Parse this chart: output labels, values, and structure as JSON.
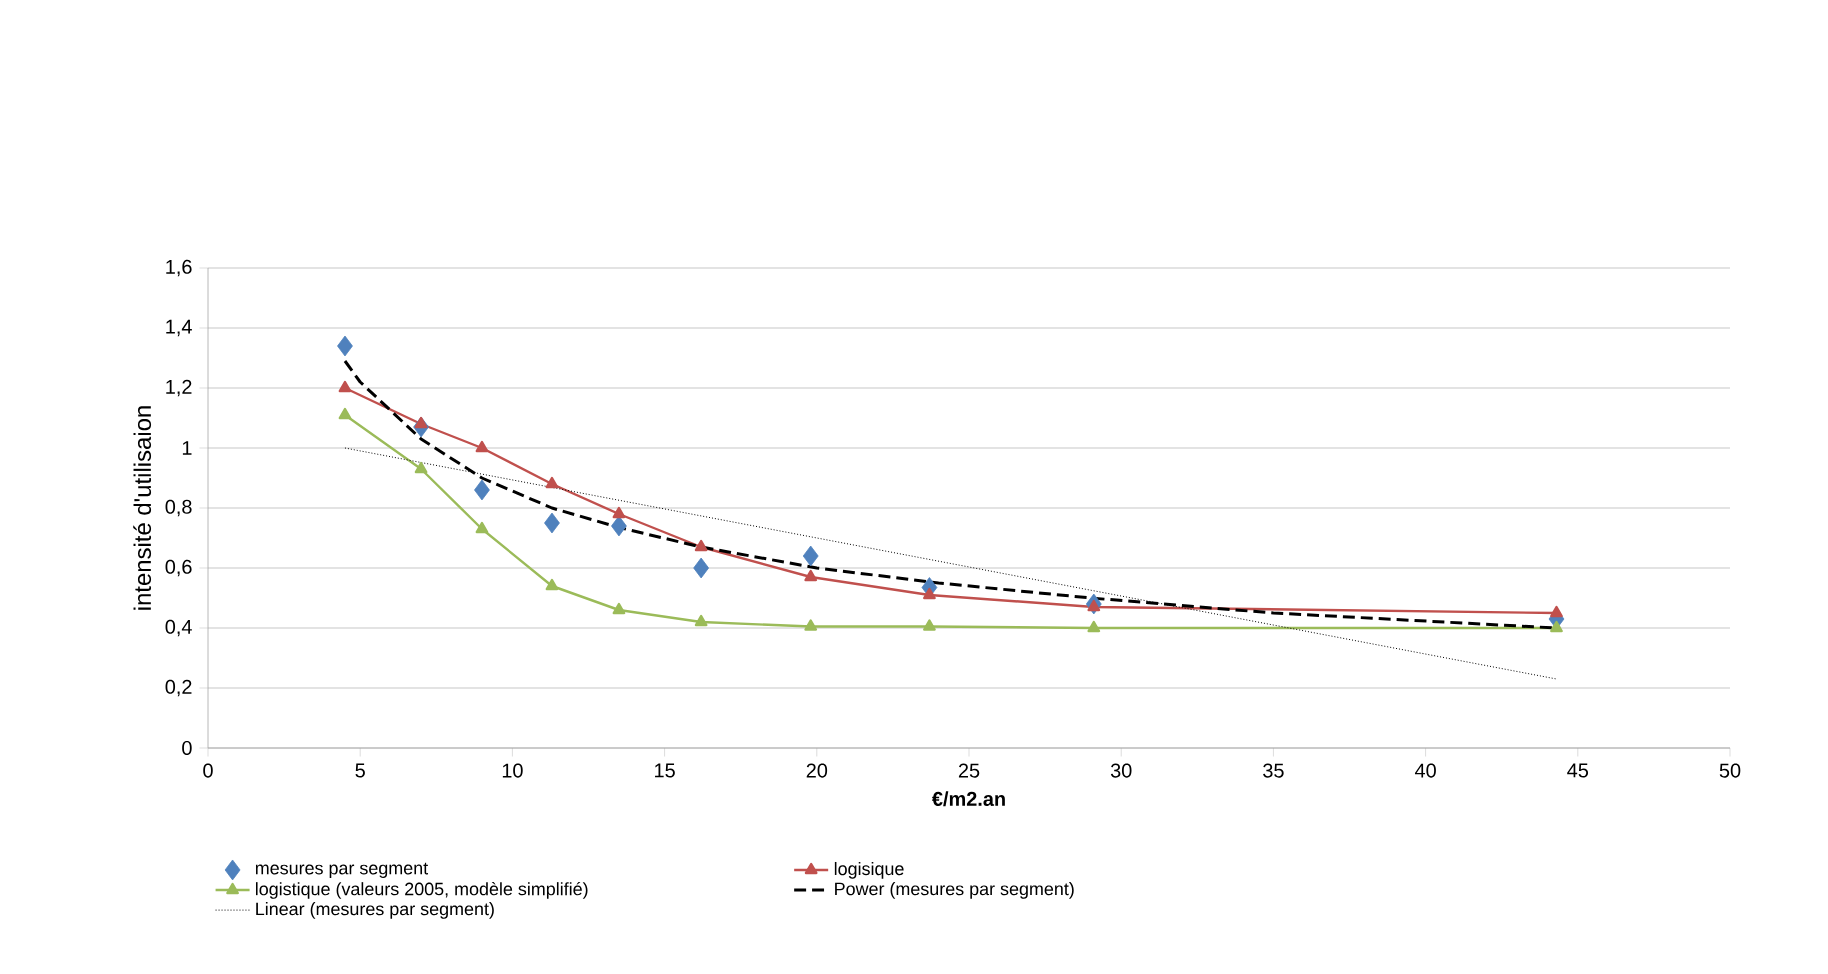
{
  "chart_data": {
    "type": "line",
    "xlabel": "€/m2.an",
    "ylabel": "intensité d'utilisaion",
    "xlim": [
      0,
      50
    ],
    "xticks": [
      0,
      5,
      10,
      15,
      20,
      25,
      30,
      35,
      40,
      45,
      50
    ],
    "ylim": [
      0,
      1.6
    ],
    "yticks": [
      0,
      {
        "value": 0.2,
        "label": "0,2"
      },
      {
        "value": 0.4,
        "label": "0,4"
      },
      {
        "value": 0.6,
        "label": "0,6"
      },
      {
        "value": 0.8,
        "label": "0,8"
      },
      1,
      {
        "value": 1.2,
        "label": "1,2"
      },
      {
        "value": 1.4,
        "label": "1,4"
      },
      {
        "value": 1.6,
        "label": "1,6"
      }
    ],
    "grid": "y",
    "legend": "bottom",
    "series": [
      {
        "name": "mesures par segment",
        "type": "scatter",
        "marker": "diamond",
        "color": "#4f81bd",
        "x": [
          4.5,
          7,
          9,
          11.3,
          13.5,
          16.2,
          19.8,
          23.7,
          29.1,
          44.3
        ],
        "values": [
          1.34,
          1.07,
          0.86,
          0.75,
          0.74,
          0.6,
          0.64,
          0.535,
          0.48,
          0.43
        ]
      },
      {
        "name": "logisique",
        "type": "line",
        "marker": "triangle",
        "line_style": "solid",
        "color": "#c0504d",
        "x": [
          4.5,
          7,
          9,
          11.3,
          13.5,
          16.2,
          19.8,
          23.7,
          29.1,
          44.3
        ],
        "values": [
          1.2,
          1.08,
          1.0,
          0.88,
          0.78,
          0.67,
          0.57,
          0.51,
          0.47,
          0.45
        ]
      },
      {
        "name": "logistique (valeurs 2005, modèle simplifié)",
        "type": "line",
        "marker": "triangle",
        "line_style": "solid",
        "color": "#9bbb59",
        "x": [
          4.5,
          7,
          9,
          11.3,
          13.5,
          16.2,
          19.8,
          23.7,
          29.1,
          44.3
        ],
        "values": [
          1.11,
          0.93,
          0.73,
          0.54,
          0.46,
          0.42,
          0.405,
          0.405,
          0.4,
          0.4
        ]
      },
      {
        "name": "Power (mesures par segment)",
        "type": "line",
        "marker": "none",
        "line_style": "dashed",
        "color": "#000000",
        "x": [
          4.5,
          5,
          7,
          9,
          11.3,
          13.5,
          16.2,
          20,
          24,
          29,
          35,
          44.3
        ],
        "values": [
          1.29,
          1.22,
          1.03,
          0.9,
          0.8,
          0.735,
          0.67,
          0.6,
          0.55,
          0.5,
          0.45,
          0.4
        ]
      },
      {
        "name": "Linear (mesures par segment)",
        "type": "line",
        "marker": "none",
        "line_style": "dotted",
        "color": "#000000",
        "x": [
          4.5,
          44.3
        ],
        "values": [
          1.0,
          0.23
        ]
      }
    ]
  }
}
